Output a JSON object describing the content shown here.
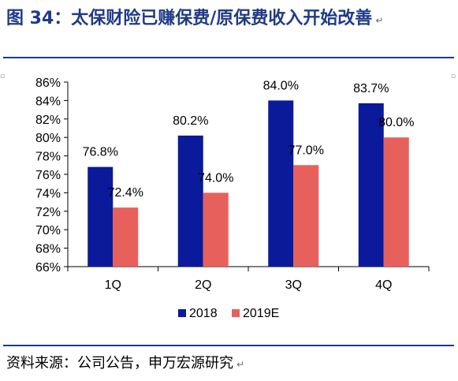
{
  "header": {
    "title": "图 34：太保财险已赚保费/原保费收入开始改善",
    "trailing_mark": "↵"
  },
  "footer": {
    "source": "资料来源：公司公告，申万宏源研究",
    "trailing_mark": "↵"
  },
  "colors": {
    "title": "#1f3a8a",
    "rule": "#1f3a8a",
    "series_2018": "#0a1a9a",
    "series_2019E": "#e8605c",
    "axis": "#000000"
  },
  "chart_data": {
    "type": "bar",
    "title": "",
    "xlabel": "",
    "ylabel": "",
    "categories": [
      "1Q",
      "2Q",
      "3Q",
      "4Q"
    ],
    "series": [
      {
        "name": "2018",
        "values": [
          76.8,
          80.2,
          84.0,
          83.7
        ],
        "labels": [
          "76.8%",
          "80.2%",
          "84.0%",
          "83.7%"
        ]
      },
      {
        "name": "2019E",
        "values": [
          72.4,
          74.0,
          77.0,
          80.0
        ],
        "labels": [
          "72.4%",
          "74.0%",
          "77.0%",
          "80.0%"
        ]
      }
    ],
    "ylim": [
      66,
      86
    ],
    "yticks": [
      66,
      68,
      70,
      72,
      74,
      76,
      78,
      80,
      82,
      84,
      86
    ],
    "ytick_labels": [
      "66%",
      "68%",
      "70%",
      "72%",
      "74%",
      "76%",
      "78%",
      "80%",
      "82%",
      "84%",
      "86%"
    ],
    "grid": false,
    "legend_position": "bottom"
  }
}
